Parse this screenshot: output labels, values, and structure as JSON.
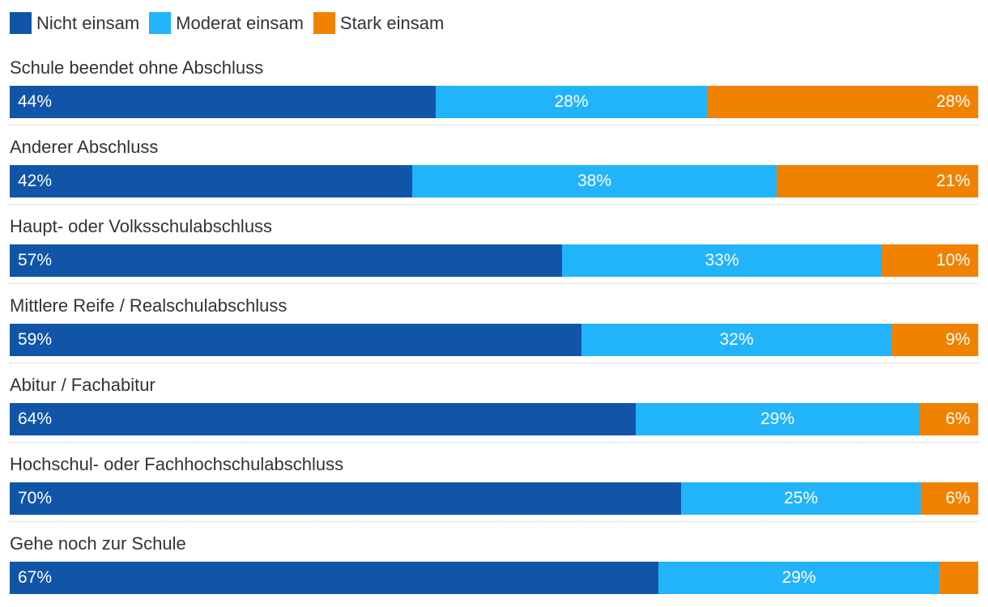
{
  "chart_data": {
    "type": "bar",
    "orientation": "horizontal",
    "stacked": true,
    "normalized": "percent",
    "legend_position": "top-left",
    "series": [
      {
        "name": "Nicht einsam",
        "color": "#1055a8",
        "values": [
          44,
          42,
          57,
          59,
          64,
          70,
          67
        ]
      },
      {
        "name": "Moderat einsam",
        "color": "#22b4fb",
        "values": [
          28,
          38,
          33,
          32,
          29,
          25,
          29
        ]
      },
      {
        "name": "Stark einsam",
        "color": "#f08200",
        "values": [
          28,
          21,
          10,
          9,
          6,
          6,
          4
        ]
      }
    ],
    "categories": [
      "Schule beendet ohne Abschluss",
      "Anderer Abschluss",
      "Haupt- oder Volksschulabschluss",
      "Mittlere Reife / Realschulabschluss",
      "Abitur / Fachabitur",
      "Hochschul- oder Fachhochschulabschluss",
      "Gehe noch zur Schule"
    ],
    "data_labels": [
      [
        "44%",
        "28%",
        "28%"
      ],
      [
        "42%",
        "38%",
        "21%"
      ],
      [
        "57%",
        "33%",
        "10%"
      ],
      [
        "59%",
        "32%",
        "9%"
      ],
      [
        "64%",
        "29%",
        "6%"
      ],
      [
        "70%",
        "25%",
        "6%"
      ],
      [
        "67%",
        "29%",
        ""
      ]
    ]
  }
}
